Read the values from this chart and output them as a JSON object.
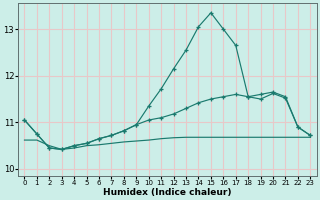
{
  "xlabel": "Humidex (Indice chaleur)",
  "bg_color": "#cceee8",
  "grid_color": "#e8c8c8",
  "line_color": "#1a7a6e",
  "xlim": [
    -0.5,
    23.5
  ],
  "ylim": [
    9.85,
    13.55
  ],
  "yticks": [
    10,
    11,
    12,
    13
  ],
  "xticks": [
    0,
    1,
    2,
    3,
    4,
    5,
    6,
    7,
    8,
    9,
    10,
    11,
    12,
    13,
    14,
    15,
    16,
    17,
    18,
    19,
    20,
    21,
    22,
    23
  ],
  "curve_peak_x": [
    0,
    1,
    2,
    3,
    4,
    5,
    6,
    7,
    8,
    9,
    10,
    11,
    12,
    13,
    14,
    15,
    16,
    17,
    18,
    19,
    20,
    21,
    22,
    23
  ],
  "curve_peak_y": [
    11.05,
    10.75,
    10.45,
    10.42,
    10.5,
    10.55,
    10.65,
    10.72,
    10.82,
    10.95,
    11.35,
    11.72,
    12.15,
    12.55,
    13.05,
    13.35,
    13.0,
    12.65,
    11.55,
    11.5,
    11.62,
    11.52,
    10.9,
    10.72
  ],
  "curve_grad_x": [
    0,
    1,
    2,
    3,
    4,
    5,
    6,
    7,
    8,
    9,
    10,
    11,
    12,
    13,
    14,
    15,
    16,
    17,
    18,
    19,
    20,
    21,
    22,
    23
  ],
  "curve_grad_y": [
    11.05,
    10.75,
    10.45,
    10.42,
    10.5,
    10.55,
    10.65,
    10.72,
    10.82,
    10.95,
    11.05,
    11.1,
    11.18,
    11.3,
    11.42,
    11.5,
    11.55,
    11.6,
    11.55,
    11.6,
    11.65,
    11.55,
    10.9,
    10.72
  ],
  "curve_flat_x": [
    0,
    1,
    2,
    3,
    4,
    5,
    6,
    7,
    8,
    9,
    10,
    11,
    12,
    13,
    14,
    15,
    16,
    17,
    18,
    19,
    20,
    21,
    22,
    23
  ],
  "curve_flat_y": [
    10.62,
    10.62,
    10.5,
    10.42,
    10.45,
    10.5,
    10.52,
    10.55,
    10.58,
    10.6,
    10.62,
    10.65,
    10.67,
    10.68,
    10.68,
    10.68,
    10.68,
    10.68,
    10.68,
    10.68,
    10.68,
    10.68,
    10.68,
    10.68
  ]
}
